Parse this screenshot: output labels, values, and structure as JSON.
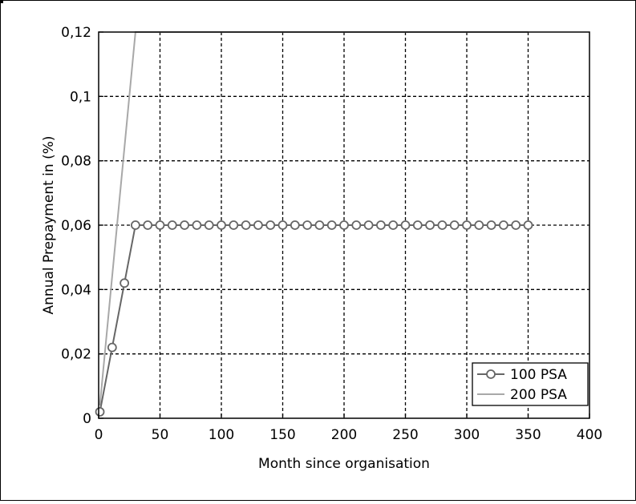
{
  "chart_data": {
    "type": "line",
    "xlabel": "Month since organisation",
    "ylabel": "Annual Prepayment in (%)",
    "xlim": [
      0,
      400
    ],
    "ylim": [
      0,
      0.12
    ],
    "x_ticks": [
      0,
      50,
      100,
      150,
      200,
      250,
      300,
      350,
      400
    ],
    "x_tick_labels": [
      "0",
      "50",
      "100",
      "150",
      "200",
      "250",
      "300",
      "350",
      "400"
    ],
    "y_ticks": [
      0,
      0.02,
      0.04,
      0.06,
      0.08,
      0.1,
      0.12
    ],
    "y_tick_labels": [
      "0",
      "0,02",
      "0,04",
      "0,06",
      "0,08",
      "0,1",
      "0,12"
    ],
    "grid": true,
    "grid_style": "dashed",
    "legend_position": "bottom-right",
    "series": [
      {
        "name": "100 PSA",
        "color": "#666666",
        "marker": "circle",
        "x": [
          1,
          11,
          21,
          30,
          40,
          50,
          60,
          70,
          80,
          90,
          100,
          110,
          120,
          130,
          140,
          150,
          160,
          170,
          180,
          190,
          200,
          210,
          220,
          230,
          240,
          250,
          260,
          270,
          280,
          290,
          300,
          310,
          320,
          330,
          340,
          350
        ],
        "y": [
          0.002,
          0.022,
          0.042,
          0.06,
          0.06,
          0.06,
          0.06,
          0.06,
          0.06,
          0.06,
          0.06,
          0.06,
          0.06,
          0.06,
          0.06,
          0.06,
          0.06,
          0.06,
          0.06,
          0.06,
          0.06,
          0.06,
          0.06,
          0.06,
          0.06,
          0.06,
          0.06,
          0.06,
          0.06,
          0.06,
          0.06,
          0.06,
          0.06,
          0.06,
          0.06,
          0.06
        ]
      },
      {
        "name": "200 PSA",
        "color": "#a8a8a8",
        "marker": "none",
        "x": [
          1,
          30,
          350
        ],
        "y": [
          0.004,
          0.12,
          0.12
        ]
      }
    ]
  }
}
